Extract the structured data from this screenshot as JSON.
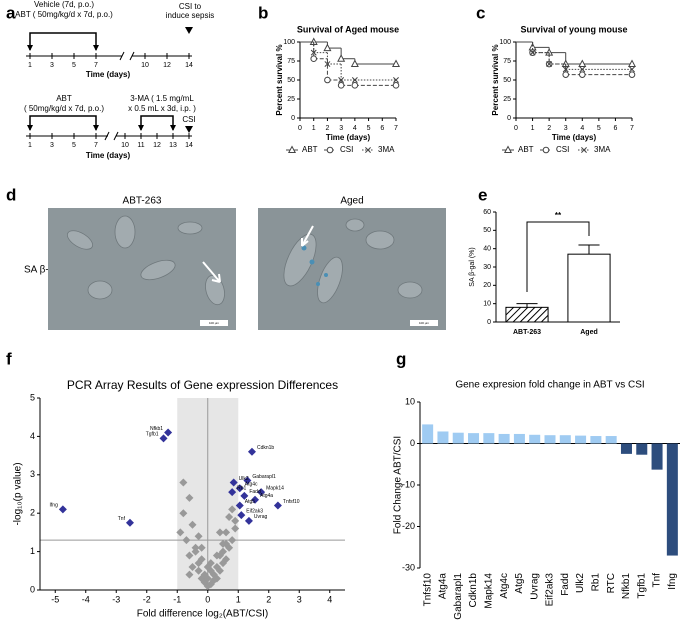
{
  "panel_labels": [
    "a",
    "b",
    "c",
    "d",
    "e",
    "f",
    "g"
  ],
  "timeline": {
    "top": {
      "labels": [
        "Vehicle (7d, p.o.)",
        "ABT ( 50mg/kg/d x 7d, p.o.)",
        "CSI to",
        "induce sepsis"
      ],
      "days": [
        1,
        3,
        5,
        7,
        10,
        12,
        14
      ],
      "axis_label": "Time (days)"
    },
    "bottom": {
      "labels": [
        "ABT",
        "( 50mg/kg/d x 7d, p.o.)",
        "3-MA ( 1.5 mg/mL",
        "x 0.5 mL x 3d, i.p. )",
        "CSI"
      ],
      "days": [
        1,
        3,
        5,
        7,
        10,
        11,
        12,
        13,
        14
      ],
      "axis_label": "Time (days)"
    }
  },
  "images": {
    "row_label": "SA β-gal",
    "panels": [
      {
        "title": "ABT-263",
        "scale_bar": "100 μm"
      },
      {
        "title": "Aged",
        "scale_bar": "100 μm"
      }
    ]
  },
  "chart_data": [
    {
      "type": "line",
      "title": "Survival of Aged mouse",
      "x_label": "Time (days)",
      "y_label": "Percent survival %",
      "step": true,
      "x": [
        0,
        1,
        2,
        3,
        4,
        7
      ],
      "xlim": [
        0,
        7
      ],
      "xticks": [
        0,
        1,
        2,
        3,
        4,
        5,
        6,
        7
      ],
      "ylim": [
        0,
        100
      ],
      "yticks": [
        0,
        25,
        50,
        75,
        100
      ],
      "series": [
        {
          "name": "ABT",
          "color": "#444444",
          "marker": "triangle",
          "linestyle": "solid",
          "values": [
            100,
            100,
            92,
            78,
            71,
            71
          ]
        },
        {
          "name": "CSI",
          "color": "#444444",
          "marker": "circle",
          "linestyle": "dashed",
          "values": [
            100,
            78,
            50,
            43,
            43,
            43
          ]
        },
        {
          "name": "3MA",
          "color": "#444444",
          "marker": "x",
          "linestyle": "dotted",
          "values": [
            100,
            86,
            71,
            50,
            50,
            50
          ]
        }
      ]
    },
    {
      "type": "line",
      "title": "Survival of young mouse",
      "x_label": "Time (days)",
      "y_label": "Percent survival %",
      "step": true,
      "x": [
        0,
        1,
        2,
        3,
        4,
        7
      ],
      "xlim": [
        0,
        7
      ],
      "xticks": [
        0,
        1,
        2,
        3,
        4,
        5,
        6,
        7
      ],
      "ylim": [
        0,
        100
      ],
      "yticks": [
        0,
        25,
        50,
        75,
        100
      ],
      "series": [
        {
          "name": "ABT",
          "color": "#444444",
          "marker": "triangle",
          "linestyle": "solid",
          "values": [
            100,
            93,
            86,
            71,
            71,
            71
          ]
        },
        {
          "name": "CSI",
          "color": "#444444",
          "marker": "circle",
          "linestyle": "dashed",
          "values": [
            100,
            86,
            71,
            57,
            57,
            57
          ]
        },
        {
          "name": "3MA",
          "color": "#444444",
          "marker": "x",
          "linestyle": "dotted",
          "values": [
            100,
            86,
            71,
            64,
            64,
            64
          ]
        }
      ]
    },
    {
      "type": "bar",
      "y_label": "SA β-gal (%)",
      "categories": [
        "ABT-263",
        "Aged"
      ],
      "values": [
        8,
        37
      ],
      "errors": [
        2,
        5
      ],
      "patterns": [
        "hatch",
        "none"
      ],
      "color": "#ffffff",
      "edgecolor": "#000000",
      "annotation": "**",
      "ylim": [
        0,
        60
      ],
      "yticks": [
        0,
        10,
        20,
        30,
        40,
        50,
        60
      ]
    },
    {
      "type": "scatter",
      "title": "PCR Array Results of Gene expression Differences",
      "x_label": "Fold difference log₂(ABT/CSI)",
      "y_label": "-log₁₀(p value)",
      "xlim": [
        -5.5,
        4.5
      ],
      "xticks": [
        -5,
        -4,
        -3,
        -2,
        -1,
        0,
        1,
        2,
        3,
        4
      ],
      "ylim": [
        0,
        5
      ],
      "yticks": [
        0,
        1,
        2,
        3,
        4,
        5
      ],
      "hlines": [
        1.3
      ],
      "vlines": [
        0
      ],
      "shade_x": [
        -1,
        1
      ],
      "series": [
        {
          "color": "#999999",
          "x": [
            -0.8,
            -0.6,
            -0.5,
            -0.4,
            -0.3,
            -0.2,
            -0.1,
            0,
            0.1,
            0.2,
            0.3,
            0.4,
            0.5,
            0.6,
            0.7,
            0.8,
            -0.9,
            -0.7,
            -0.4,
            -0.2,
            0.1,
            0.3,
            0.5,
            0.7,
            0.9,
            -0.6,
            -0.3,
            0,
            0.2,
            0.4,
            0.6,
            0.8,
            -0.5,
            -0.1,
            0.3,
            0.5,
            0.9,
            -0.8,
            -0.3,
            0.1,
            0.6,
            -0.2,
            0,
            0.4,
            -0.6
          ],
          "values": [
            2.8,
            2.4,
            1.7,
            1.1,
            0.7,
            0.3,
            0.2,
            0.1,
            0.15,
            0.4,
            0.6,
            0.9,
            1.2,
            1.5,
            1.9,
            2.1,
            1.5,
            1.3,
            1.0,
            0.8,
            0.5,
            0.3,
            0.7,
            1.1,
            1.6,
            0.9,
            0.5,
            0.3,
            0.25,
            0.5,
            0.8,
            1.3,
            0.6,
            0.4,
            0.9,
            1.0,
            1.8,
            2.0,
            1.4,
            0.7,
            1.2,
            1.1,
            0.6,
            1.5,
            0.4
          ]
        },
        {
          "color": "#33339a",
          "labels": [
            "Nfkb1",
            "Tgfb1",
            "Ifng",
            "Tnf",
            "Cdkn1b",
            "Gabarapl1",
            "Ulk2",
            "Atg4c",
            "Rb1",
            "Mapk14",
            "Fadd",
            "Atg4a",
            "Tnfsf10",
            "Atg5",
            "Eif2ak3",
            "Uvrag"
          ],
          "x": [
            -1.3,
            -1.45,
            -4.75,
            -2.55,
            1.45,
            1.3,
            0.85,
            1.05,
            0.8,
            1.75,
            1.2,
            1.55,
            2.3,
            1.05,
            1.1,
            1.35
          ],
          "values": [
            4.1,
            3.95,
            2.1,
            1.75,
            3.6,
            2.85,
            2.8,
            2.65,
            2.55,
            2.55,
            2.45,
            2.35,
            2.2,
            2.2,
            1.95,
            1.8
          ]
        }
      ]
    },
    {
      "type": "bar",
      "title": "Gene expresion fold change in ABT vs CSI",
      "y_label": "Fold Change ABT/CSI",
      "xtick_rotation": -90,
      "categories": [
        "Tnfsf10",
        "Atg4a",
        "Gabarapl1",
        "Cdkn1b",
        "Mapk14",
        "Atg4c",
        "Atg5",
        "Uvrag",
        "Eif2ak3",
        "Fadd",
        "Ulk2",
        "Rb1",
        "RTC",
        "Nfkb1",
        "Tgfb1",
        "Tnf",
        "Ifng"
      ],
      "values": [
        4.6,
        2.9,
        2.6,
        2.5,
        2.5,
        2.3,
        2.3,
        2.1,
        2.0,
        2.0,
        1.9,
        1.8,
        1.8,
        -2.5,
        -2.7,
        -6.3,
        -27
      ],
      "colors": [
        "#9fcbf2",
        "#9fcbf2",
        "#9fcbf2",
        "#9fcbf2",
        "#9fcbf2",
        "#9fcbf2",
        "#9fcbf2",
        "#9fcbf2",
        "#9fcbf2",
        "#9fcbf2",
        "#9fcbf2",
        "#9fcbf2",
        "#9fcbf2",
        "#2d4d7d",
        "#2d4d7d",
        "#2d4d7d",
        "#2d4d7d"
      ],
      "ylim": [
        -30,
        10
      ],
      "yticks": [
        -30,
        -20,
        -10,
        0,
        10
      ]
    }
  ]
}
